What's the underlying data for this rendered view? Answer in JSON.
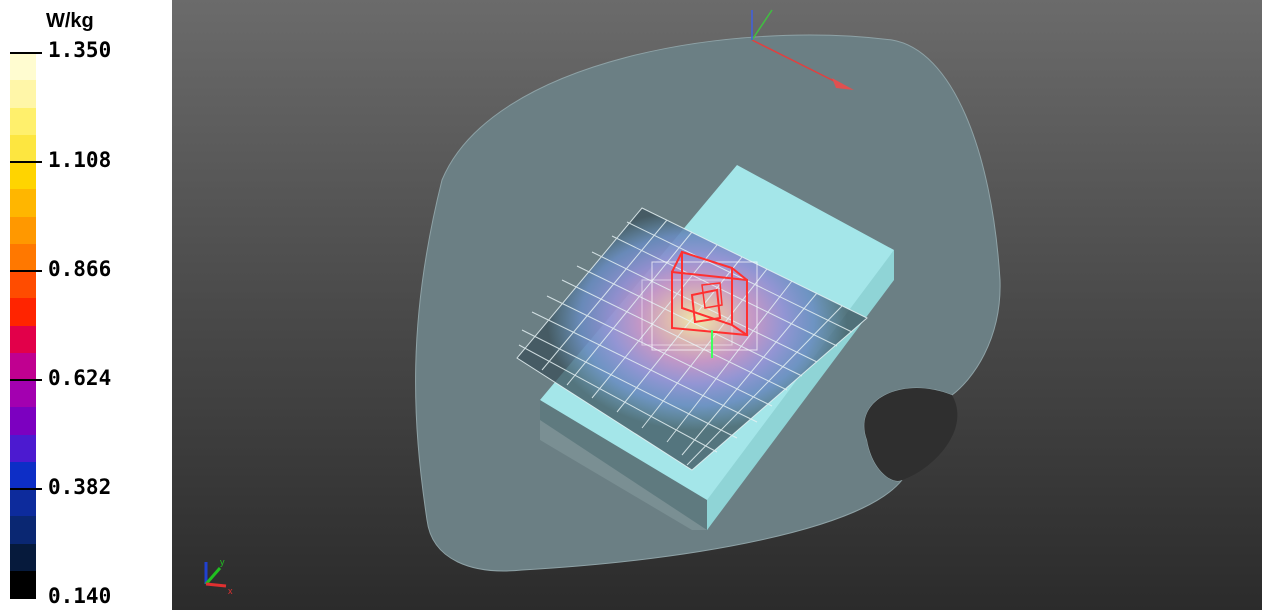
{
  "legend": {
    "unit": "W/kg",
    "ticks": [
      "1.350",
      "1.108",
      "0.866",
      "0.624",
      "0.382",
      "0.140"
    ],
    "colors": [
      "#fffcd0",
      "#fff6a8",
      "#fff06c",
      "#fde640",
      "#ffd400",
      "#ffb600",
      "#ff9800",
      "#ff7800",
      "#ff4c00",
      "#ff2400",
      "#e2004a",
      "#c00090",
      "#a300b0",
      "#7c00c0",
      "#4c1ad0",
      "#0d2ec6",
      "#0d2b9c",
      "#0a2772",
      "#061a3c",
      "#000000"
    ]
  },
  "viewport": {
    "main_axes": [
      "x-axis-arrow-red",
      "y-axis-green",
      "z-axis-blue"
    ],
    "orientation_labels": {
      "x": "x",
      "y": "y"
    }
  }
}
